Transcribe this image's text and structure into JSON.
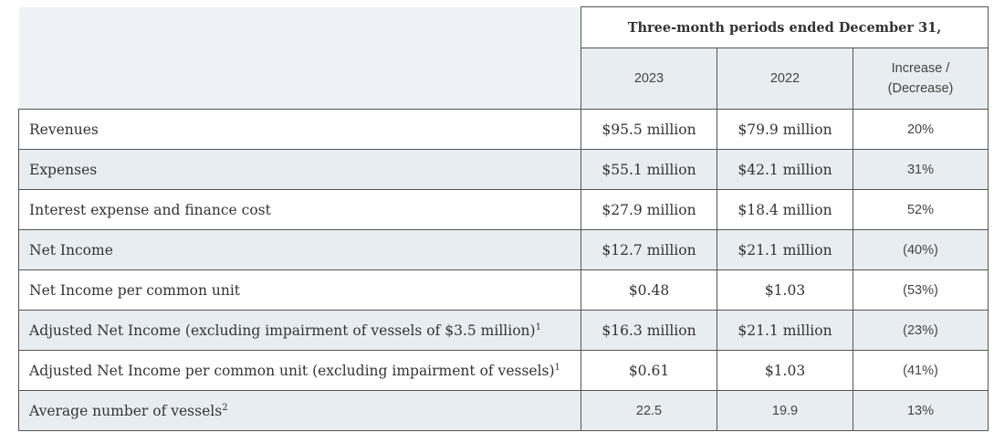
{
  "header": {
    "period_title": "Three-month periods ended December 31,",
    "col_2023": "2023",
    "col_2022": "2022",
    "col_change_line1": "Increase /",
    "col_change_line2": "(Decrease)"
  },
  "rows": [
    {
      "label": "Revenues",
      "sup": "",
      "v2023": "$95.5 million",
      "v2022": "$79.9 million",
      "change": "20%"
    },
    {
      "label": "Expenses",
      "sup": "",
      "v2023": "$55.1 million",
      "v2022": "$42.1 million",
      "change": "31%"
    },
    {
      "label": "Interest expense and finance cost",
      "sup": "",
      "v2023": "$27.9 million",
      "v2022": "$18.4 million",
      "change": "52%"
    },
    {
      "label": "Net Income",
      "sup": "",
      "v2023": "$12.7 million",
      "v2022": "$21.1 million",
      "change": "(40%)"
    },
    {
      "label": "Net Income per common unit",
      "sup": "",
      "v2023": "$0.48",
      "v2022": "$1.03",
      "change": "(53%)"
    },
    {
      "label": "Adjusted Net Income (excluding impairment of vessels of $3.5 million)",
      "sup": "1",
      "v2023": "$16.3 million",
      "v2022": "$21.1 million",
      "change": "(23%)"
    },
    {
      "label": "Adjusted Net Income per common unit (excluding impairment of vessels)",
      "sup": "1",
      "v2023": "$0.61",
      "v2022": "$1.03",
      "change": "(41%)"
    },
    {
      "label": "Average number of vessels",
      "sup": "2",
      "v2023": "22.5",
      "v2022": "19.9",
      "change": "13%"
    }
  ]
}
